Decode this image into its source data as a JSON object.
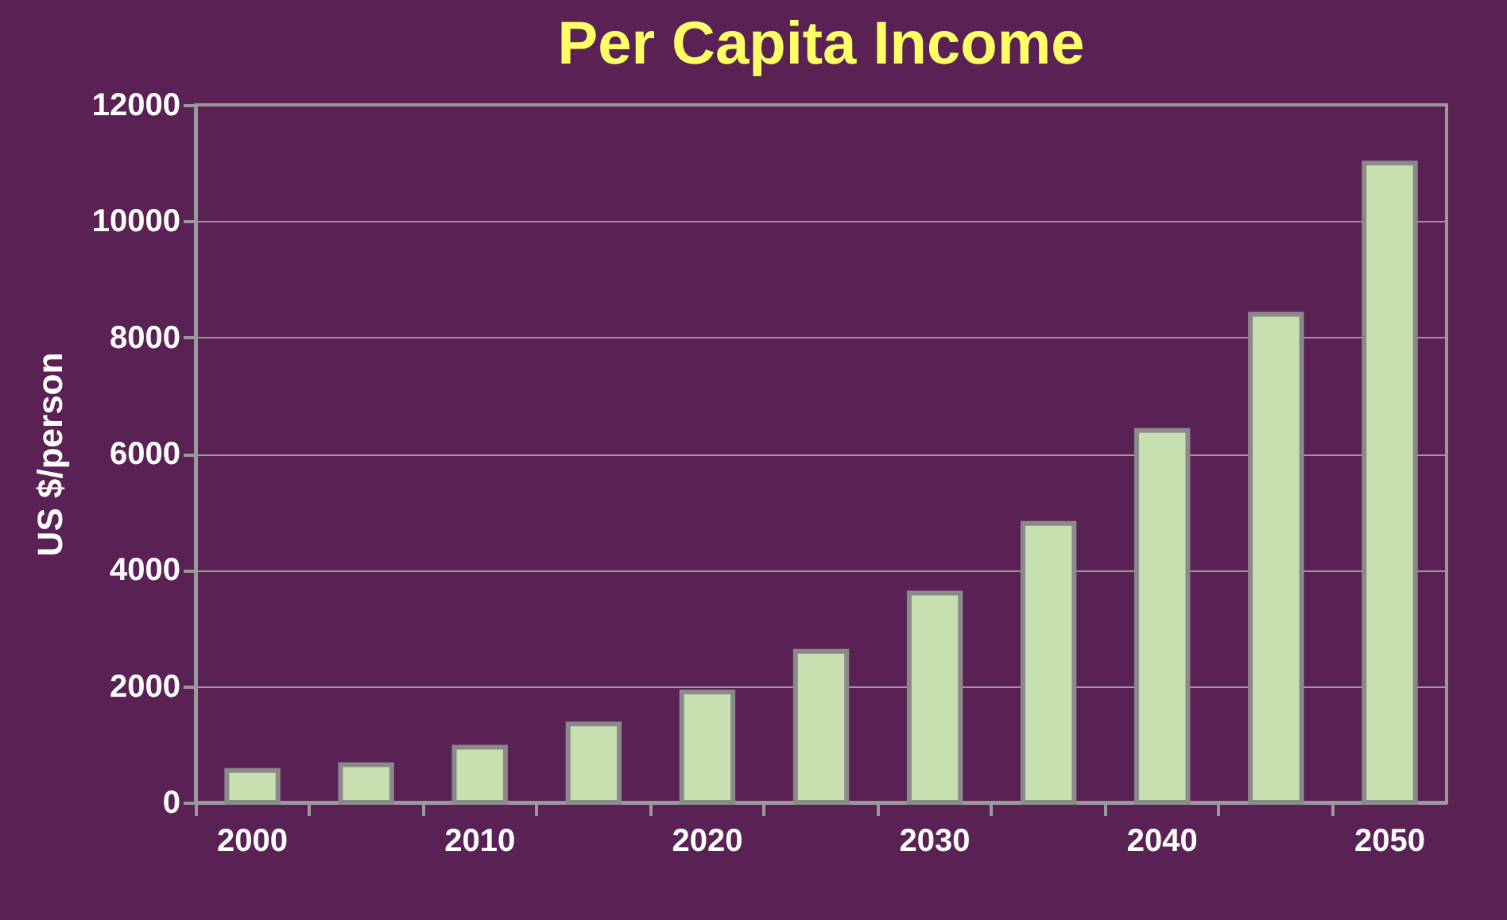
{
  "chart_data": {
    "type": "bar",
    "title": "Per Capita Income",
    "ylabel": "US $/person",
    "categories": [
      "2000",
      null,
      "2010",
      null,
      "2020",
      null,
      "2030",
      null,
      "2040",
      null,
      "2050"
    ],
    "values": [
      550,
      650,
      950,
      1350,
      1900,
      2600,
      3600,
      4800,
      6400,
      8400,
      11000
    ],
    "color": "#c8e0b0",
    "ylim": [
      0,
      12000
    ],
    "yticks": [
      0,
      2000,
      4000,
      6000,
      8000,
      10000,
      12000
    ],
    "grid": "y"
  }
}
